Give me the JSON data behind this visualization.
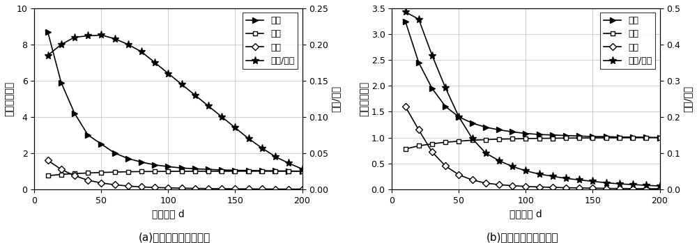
{
  "left_chart": {
    "x": [
      10,
      20,
      30,
      40,
      50,
      60,
      70,
      80,
      90,
      100,
      110,
      120,
      130,
      140,
      150,
      160,
      170,
      180,
      190,
      200
    ],
    "neizu": [
      8.7,
      5.9,
      4.2,
      3.0,
      2.5,
      2.0,
      1.7,
      1.5,
      1.35,
      1.25,
      1.18,
      1.13,
      1.1,
      1.07,
      1.05,
      1.04,
      1.03,
      1.02,
      1.01,
      1.0
    ],
    "zigan": [
      0.75,
      0.82,
      0.87,
      0.9,
      0.93,
      0.95,
      0.97,
      0.98,
      0.985,
      0.99,
      0.993,
      0.995,
      0.997,
      0.998,
      0.999,
      1.0,
      1.0,
      1.0,
      1.0,
      1.0
    ],
    "hugan": [
      1.6,
      1.1,
      0.75,
      0.5,
      0.35,
      0.25,
      0.18,
      0.13,
      0.1,
      0.08,
      0.06,
      0.05,
      0.04,
      0.03,
      0.025,
      0.02,
      0.016,
      0.013,
      0.011,
      0.01
    ],
    "ratio": [
      0.185,
      0.2,
      0.21,
      0.212,
      0.213,
      0.208,
      0.2,
      0.19,
      0.175,
      0.16,
      0.145,
      0.13,
      0.115,
      0.1,
      0.085,
      0.07,
      0.057,
      0.045,
      0.036,
      0.028
    ],
    "ylim_left": [
      0,
      10
    ],
    "ylim_right": [
      0,
      0.25
    ],
    "yticks_left": [
      0,
      2,
      4,
      6,
      8,
      10
    ],
    "yticks_right": [
      0,
      0.05,
      0.1,
      0.15,
      0.2,
      0.25
    ],
    "xlabel": "传输距离 d",
    "ylabel_left": "线圈参数比値",
    "ylabel_right": "互感/内阻",
    "caption": "(a)线圈参数受铁板影响"
  },
  "right_chart": {
    "x": [
      10,
      20,
      30,
      40,
      50,
      60,
      70,
      80,
      90,
      100,
      110,
      120,
      130,
      140,
      150,
      160,
      170,
      180,
      190,
      200
    ],
    "neizu": [
      3.25,
      2.45,
      1.95,
      1.6,
      1.4,
      1.28,
      1.2,
      1.15,
      1.11,
      1.08,
      1.06,
      1.05,
      1.04,
      1.03,
      1.02,
      1.02,
      1.01,
      1.01,
      1.005,
      1.0
    ],
    "zigan": [
      0.78,
      0.84,
      0.88,
      0.91,
      0.93,
      0.95,
      0.96,
      0.97,
      0.975,
      0.98,
      0.985,
      0.987,
      0.99,
      0.992,
      0.994,
      0.995,
      0.997,
      0.998,
      0.999,
      1.0
    ],
    "hugan": [
      1.6,
      1.15,
      0.72,
      0.45,
      0.28,
      0.18,
      0.12,
      0.09,
      0.07,
      0.055,
      0.045,
      0.038,
      0.031,
      0.026,
      0.022,
      0.018,
      0.015,
      0.013,
      0.011,
      0.01
    ],
    "ratio": [
      0.49,
      0.47,
      0.37,
      0.28,
      0.2,
      0.14,
      0.1,
      0.079,
      0.063,
      0.051,
      0.042,
      0.036,
      0.03,
      0.026,
      0.022,
      0.018,
      0.015,
      0.013,
      0.011,
      0.009
    ],
    "ylim_left": [
      0,
      3.5
    ],
    "ylim_right": [
      0,
      0.5
    ],
    "yticks_left": [
      0,
      0.5,
      1.0,
      1.5,
      2.0,
      2.5,
      3.0,
      3.5
    ],
    "yticks_right": [
      0,
      0.1,
      0.2,
      0.3,
      0.4,
      0.5
    ],
    "xlabel": "传输距离 d",
    "ylabel_left": "线圈参数比値",
    "ylabel_right": "互感/内阻",
    "caption": "(b)线圈参数受铝板影响"
  },
  "legend_labels": [
    "内阻",
    "自感",
    "互感",
    "互感/内阻"
  ],
  "color": "#000000",
  "xticks": [
    0,
    50,
    100,
    150,
    200
  ],
  "markersize_arrow": 6,
  "markersize_sq": 5,
  "markersize_dia": 5,
  "markersize_star": 8,
  "linewidth": 1.2,
  "fontsize_label": 10,
  "fontsize_tick": 9,
  "fontsize_caption": 11,
  "fontsize_legend": 9
}
